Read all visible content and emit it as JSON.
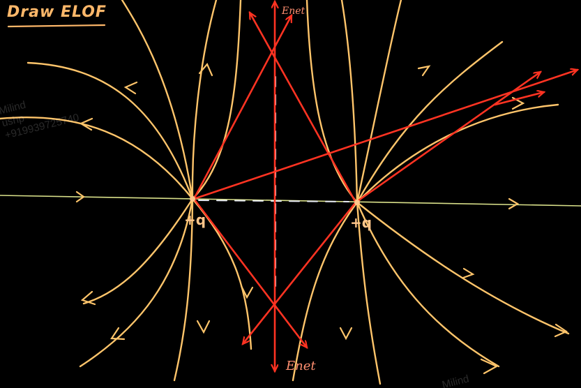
{
  "title": "Draw ELOF",
  "charges": {
    "left": "+q",
    "right": "+q"
  },
  "labels": {
    "e_net_top": "Enet",
    "e_net_bottom": "Enet"
  },
  "watermarks": {
    "name": "Milind",
    "handle": "ushp",
    "phone": "+919939725740"
  },
  "colors": {
    "background": "#000000",
    "field_lines": "#ffc56b",
    "vectors": "#ff3322",
    "axis": "#d9e08a",
    "bisector": "#e6e9f2"
  }
}
